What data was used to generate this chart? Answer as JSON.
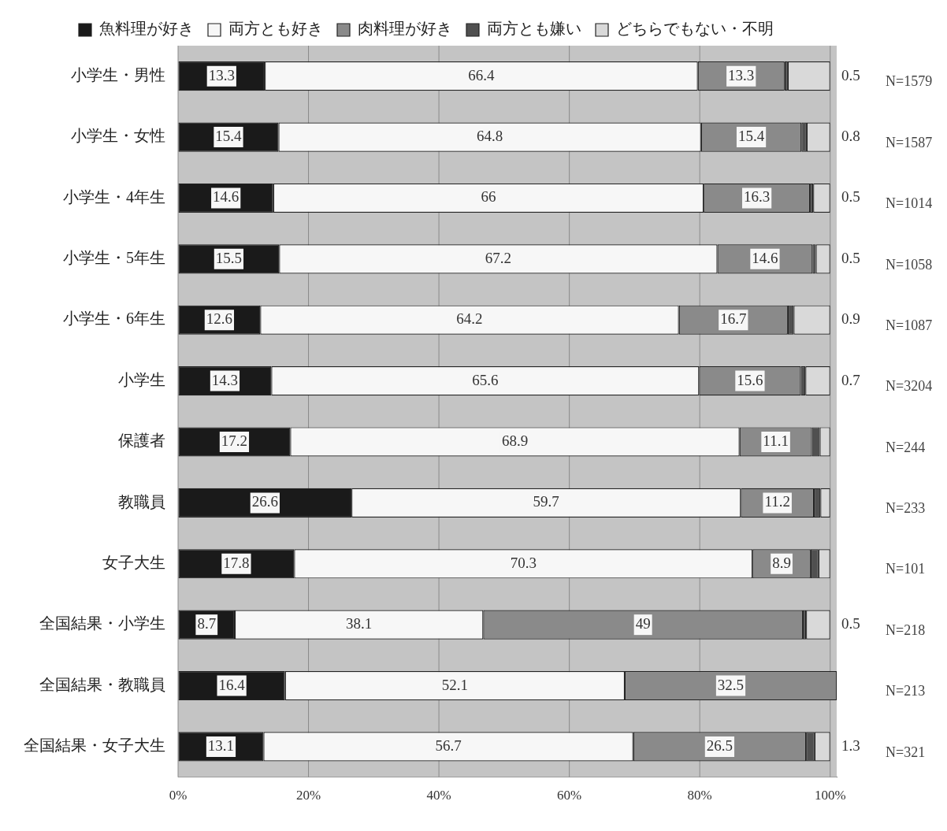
{
  "chart_data": {
    "type": "bar",
    "orientation": "horizontal",
    "stacked": true,
    "categories": [
      "小学生・男性",
      "小学生・女性",
      "小学生・4年生",
      "小学生・5年生",
      "小学生・6年生",
      "小学生",
      "保護者",
      "教職員",
      "女子大生",
      "全国結果・小学生",
      "全国結果・教職員",
      "全国結果・女子大生"
    ],
    "series": [
      {
        "name": "魚料理が好き",
        "color": "#1a1a1a",
        "values": [
          13.3,
          15.4,
          14.6,
          15.5,
          12.6,
          14.3,
          17.2,
          26.6,
          17.8,
          8.7,
          16.4,
          13.1
        ],
        "value_labels": [
          "13.3",
          "15.4",
          "14.6",
          "15.5",
          "12.6",
          "14.3",
          "17.2",
          "26.6",
          "17.8",
          "8.7",
          "16.4",
          "13.1"
        ]
      },
      {
        "name": "両方とも好き",
        "color": "#f7f7f7",
        "values": [
          66.4,
          64.8,
          66,
          67.2,
          64.2,
          65.6,
          68.9,
          59.7,
          70.3,
          38.1,
          52.1,
          56.7
        ],
        "value_labels": [
          "66.4",
          "64.8",
          "66",
          "67.2",
          "64.2",
          "65.6",
          "68.9",
          "59.7",
          "70.3",
          "38.1",
          "52.1",
          "56.7"
        ]
      },
      {
        "name": "肉料理が好き",
        "color": "#8a8a8a",
        "values": [
          13.3,
          15.4,
          16.3,
          14.6,
          16.7,
          15.6,
          11.1,
          11.2,
          8.9,
          49,
          32.5,
          26.5
        ],
        "value_labels": [
          "13.3",
          "15.4",
          "16.3",
          "14.6",
          "16.7",
          "15.6",
          "11.1",
          "11.2",
          "8.9",
          "49",
          "32.5",
          "26.5"
        ]
      },
      {
        "name": "両方とも嫌い",
        "color": "#505050",
        "values": [
          0.5,
          0.8,
          0.5,
          0.5,
          0.9,
          0.7,
          1.2,
          1.0,
          1.2,
          0.5,
          null,
          1.3
        ],
        "value_labels": [
          "0.5",
          "0.8",
          "0.5",
          "0.5",
          "0.9",
          "0.7",
          null,
          null,
          null,
          "0.5",
          null,
          "1.3"
        ]
      },
      {
        "name": "どちらでもない・不明",
        "color": "#d9d9d9",
        "values": [
          6.5,
          3.6,
          2.6,
          2.2,
          5.6,
          3.8,
          1.6,
          1.5,
          1.8,
          3.7,
          null,
          2.4
        ]
      }
    ],
    "xlim": [
      0,
      101
    ],
    "xticks": [
      {
        "value": 0,
        "label": "0%"
      },
      {
        "value": 20,
        "label": "20%"
      },
      {
        "value": 40,
        "label": "40%"
      },
      {
        "value": 60,
        "label": "60%"
      },
      {
        "value": 80,
        "label": "80%"
      },
      {
        "value": 100,
        "label": "100%"
      }
    ],
    "grid": "x",
    "legend": "top",
    "annotations": [
      "N=1579",
      "N=1587",
      "N=1014",
      "N=1058",
      "N=1087",
      "N=3204",
      "N=244",
      "N=233",
      "N=101",
      "N=218",
      "N=213",
      "N=321"
    ]
  }
}
